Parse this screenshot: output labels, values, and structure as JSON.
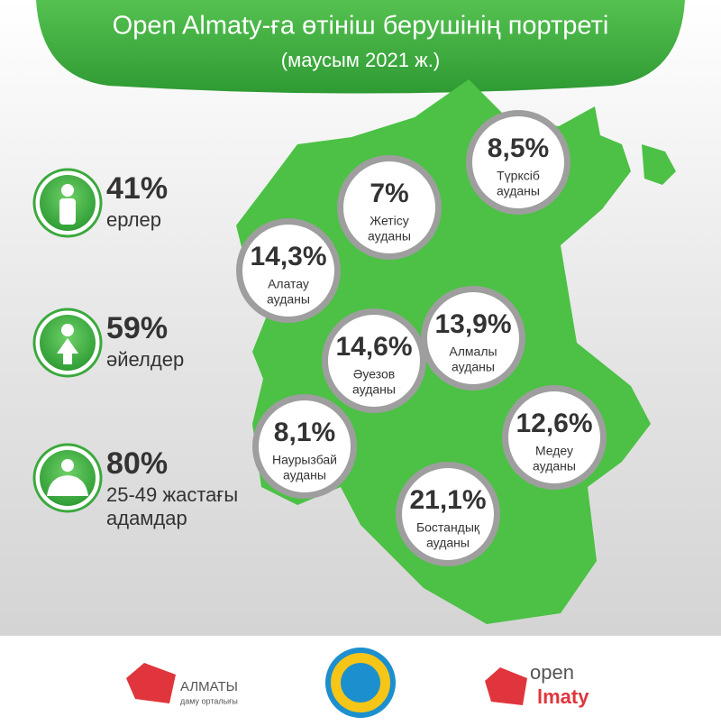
{
  "header": {
    "title": "Open Almaty-ға өтініш берушінің портреті",
    "subtitle": "(маусым 2021 ж.)"
  },
  "stats": [
    {
      "value": "41%",
      "lines": [
        "ерлер"
      ],
      "icon": "man"
    },
    {
      "value": "59%",
      "lines": [
        "әйелдер"
      ],
      "icon": "woman"
    },
    {
      "value": "80%",
      "lines": [
        "25-49 жастағы",
        "адамдар"
      ],
      "icon": "person"
    }
  ],
  "districts": [
    {
      "value": "8,5%",
      "lines": [
        "Түрксіб",
        "ауданы"
      ]
    },
    {
      "value": "7%",
      "lines": [
        "Жетісу",
        "ауданы"
      ]
    },
    {
      "value": "14,3%",
      "lines": [
        "Алатау",
        "ауданы"
      ]
    },
    {
      "value": "13,9%",
      "lines": [
        "Алмалы",
        "ауданы"
      ]
    },
    {
      "value": "14,6%",
      "lines": [
        "Әуезов",
        "ауданы"
      ]
    },
    {
      "value": "8,1%",
      "lines": [
        "Наурызбай",
        "ауданы"
      ]
    },
    {
      "value": "12,6%",
      "lines": [
        "Медеу",
        "ауданы"
      ]
    },
    {
      "value": "21,1%",
      "lines": [
        "Бостандық",
        "ауданы"
      ]
    }
  ],
  "footer": {
    "left_logo": [
      "АЛМАТЫ",
      "даму орталығы"
    ],
    "right_logo": [
      "open",
      "lmaty"
    ]
  }
}
